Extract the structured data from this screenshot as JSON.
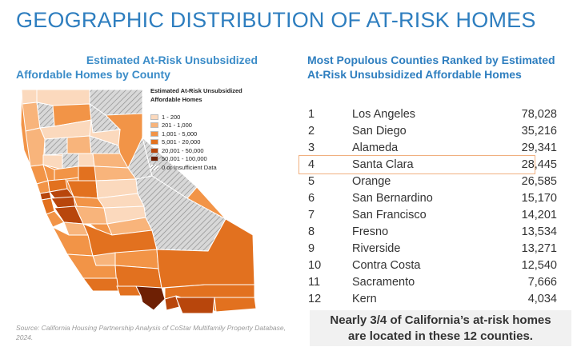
{
  "title": "GEOGRAPHIC DISTRIBUTION OF AT-RISK HOMES",
  "map_section": {
    "heading_line1": "Estimated At-Risk Unsubsidized",
    "heading_line2": "Affordable Homes by County",
    "legend": {
      "title_line1": "Estimated At-Risk Unsubsidized",
      "title_line2": "Affordable Homes",
      "items": [
        {
          "label": "1 - 200",
          "color": "#fbd9bd"
        },
        {
          "label": "201 - 1,000",
          "color": "#f8b47b"
        },
        {
          "label": "1,001 - 5,000",
          "color": "#f29447"
        },
        {
          "label": "5,001 - 20,000",
          "color": "#e2711f"
        },
        {
          "label": "20,001 - 50,000",
          "color": "#b8460c"
        },
        {
          "label": "50,001 - 100,000",
          "color": "#6e2004"
        },
        {
          "label": "0 or Insufficient Data",
          "color": "hatch"
        }
      ]
    },
    "source": "Source: California Housing Partnership Analysis of CoStar Multifamily Property Database, 2024."
  },
  "ranking": {
    "heading": "Most Populous Counties Ranked by Estimated At-Risk Unsubsidized Affordable Homes",
    "rows": [
      {
        "rank": "1",
        "county": "Los Angeles",
        "value": "78,028"
      },
      {
        "rank": "2",
        "county": "San Diego",
        "value": "35,216"
      },
      {
        "rank": "3",
        "county": "Alameda",
        "value": "29,341"
      },
      {
        "rank": "4",
        "county": "Santa Clara",
        "value": "28,445"
      },
      {
        "rank": "5",
        "county": "Orange",
        "value": "26,585"
      },
      {
        "rank": "6",
        "county": "San Bernardino",
        "value": "15,170"
      },
      {
        "rank": "7",
        "county": "San Francisco",
        "value": "14,201"
      },
      {
        "rank": "8",
        "county": "Fresno",
        "value": "13,534"
      },
      {
        "rank": "9",
        "county": "Riverside",
        "value": "13,271"
      },
      {
        "rank": "10",
        "county": "Contra Costa",
        "value": "12,540"
      },
      {
        "rank": "11",
        "county": "Sacramento",
        "value": "7,666"
      },
      {
        "rank": "12",
        "county": "Kern",
        "value": "4,034"
      }
    ],
    "highlighted_rank": "4",
    "highlight_color": "#f0b080"
  },
  "callout": {
    "line1": "Nearly 3/4 of California’s at-risk homes",
    "line2": "are located in these 12 counties."
  }
}
